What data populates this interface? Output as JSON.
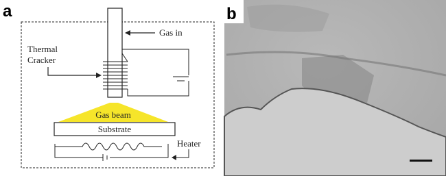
{
  "panel_a": {
    "label": "a",
    "gas_in": "Gas in",
    "thermal_cracker": [
      "Thermal",
      "Cracker"
    ],
    "gas_beam": "Gas beam",
    "substrate": "Substrate",
    "heater": "Heater"
  },
  "panel_b": {
    "label": "b"
  }
}
